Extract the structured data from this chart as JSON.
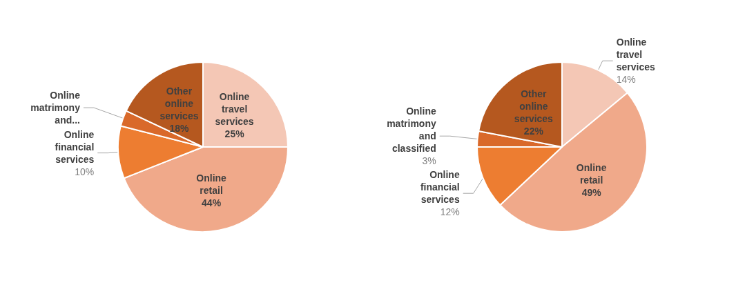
{
  "chart_data": [
    {
      "type": "pie",
      "categories": [
        "Online travel services",
        "Online retail",
        "Online financial services",
        "Online matrimony and...",
        "Other online services"
      ],
      "values": [
        25,
        44,
        10,
        3,
        18
      ],
      "value_labels": [
        "25%",
        "44%",
        "10%",
        null,
        "18%"
      ],
      "colors": [
        "#f4c7b5",
        "#f0a98a",
        "#ed7d31",
        "#d9692a",
        "#b5581f"
      ]
    },
    {
      "type": "pie",
      "categories": [
        "Online travel services",
        "Online retail",
        "Online financial services",
        "Online matrimony and classified",
        "Other online services"
      ],
      "values": [
        14,
        49,
        12,
        3,
        22
      ],
      "value_labels": [
        "14%",
        "49%",
        "12%",
        "3%",
        "22%"
      ],
      "colors": [
        "#f4c7b5",
        "#f0a98a",
        "#ed7d31",
        "#d9692a",
        "#b5581f"
      ]
    }
  ]
}
